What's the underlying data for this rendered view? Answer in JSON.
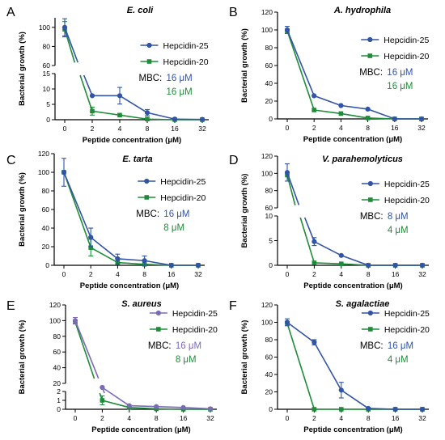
{
  "colors": {
    "blue": "#3154a5",
    "green": "#1f8c3a",
    "purple": "#7b6bb6",
    "black": "#000000"
  },
  "chart_data": [
    {
      "panel": "A",
      "title": "E. coli",
      "type": "line",
      "xlabel": "Peptide concentration (μM)",
      "ylabel": "Bacterial growth (%)",
      "categories": [
        "0",
        "2",
        "4",
        "8",
        "16",
        "32"
      ],
      "yaxis": {
        "lower": [
          0,
          15
        ],
        "upper": [
          60,
          110
        ],
        "lower_ticks": [
          "0",
          "5",
          "10",
          "15"
        ],
        "upper_ticks": [
          "60",
          "80",
          "100"
        ]
      },
      "series": [
        {
          "name": "Hepcidin-25",
          "color": "blue",
          "values": [
            100,
            7.8,
            7.8,
            2.3,
            0.2,
            0.1
          ],
          "errors": [
            9,
            0,
            2.7,
            1,
            0,
            0
          ]
        },
        {
          "name": "Hepcidin-20",
          "color": "green",
          "values": [
            98,
            2.8,
            1.5,
            0.2,
            0,
            0
          ],
          "errors": [
            8,
            1.3,
            0,
            0,
            0,
            0
          ]
        }
      ],
      "mbc": {
        "label": "MBC:",
        "hep25": "16 μM",
        "hep20": "16 μM"
      }
    },
    {
      "panel": "B",
      "title": "A. hydrophila",
      "type": "line",
      "xlabel": "Peptide concentration (μM)",
      "ylabel": "Bacterial growth (%)",
      "categories": [
        "0",
        "2",
        "4",
        "8",
        "16",
        "32"
      ],
      "yaxis": {
        "range": [
          0,
          120
        ],
        "ticks": [
          "0",
          "20",
          "40",
          "60",
          "80",
          "100",
          "120"
        ]
      },
      "series": [
        {
          "name": "Hepcidin-25",
          "color": "blue",
          "values": [
            100,
            26,
            15,
            11,
            0,
            0
          ],
          "errors": [
            4,
            0,
            0,
            0,
            0,
            0
          ]
        },
        {
          "name": "Hepcidin-20",
          "color": "green",
          "values": [
            99,
            10,
            6,
            1,
            0,
            0
          ],
          "errors": [
            0,
            0,
            0,
            0,
            0,
            0
          ]
        }
      ],
      "mbc": {
        "label": "MBC:",
        "hep25": "16 μM",
        "hep20": "16 μM"
      }
    },
    {
      "panel": "C",
      "title": "E. tarta",
      "type": "line",
      "xlabel": "Peptide concentration (μM)",
      "ylabel": "Bacterial growth (%)",
      "categories": [
        "0",
        "2",
        "4",
        "8",
        "16",
        "32"
      ],
      "yaxis": {
        "range": [
          0,
          120
        ],
        "ticks": [
          "0",
          "20",
          "40",
          "60",
          "80",
          "100",
          "120"
        ]
      },
      "series": [
        {
          "name": "Hepcidin-25",
          "color": "blue",
          "values": [
            100,
            30,
            7,
            5,
            0,
            0
          ],
          "errors": [
            15,
            10,
            5,
            5,
            0,
            0
          ]
        },
        {
          "name": "Hepcidin-20",
          "color": "green",
          "values": [
            100,
            19,
            3,
            1,
            0,
            0
          ],
          "errors": [
            0,
            9,
            0,
            0,
            0,
            0
          ]
        }
      ],
      "mbc": {
        "label": "MBC:",
        "hep25": "16 μM",
        "hep20": "8 μM"
      }
    },
    {
      "panel": "D",
      "title": "V. parahemolyticus",
      "type": "line",
      "xlabel": "Peptide concentration (μM)",
      "ylabel": "Bacterial growth (%)",
      "categories": [
        "0",
        "2",
        "4",
        "8",
        "16",
        "32"
      ],
      "yaxis": {
        "lower": [
          0,
          10
        ],
        "upper": [
          60,
          120
        ],
        "lower_ticks": [
          "0",
          "5",
          "10"
        ],
        "upper_ticks": [
          "60",
          "80",
          "100",
          "120"
        ]
      },
      "series": [
        {
          "name": "Hepcidin-25",
          "color": "blue",
          "values": [
            101,
            4.8,
            2,
            0,
            0,
            0
          ],
          "errors": [
            10,
            0.8,
            0,
            0,
            0,
            0
          ]
        },
        {
          "name": "Hepcidin-20",
          "color": "green",
          "values": [
            98,
            0.5,
            0.3,
            0,
            0,
            0
          ],
          "errors": [
            0,
            0,
            0,
            0,
            0,
            0
          ]
        }
      ],
      "mbc": {
        "label": "MBC:",
        "hep25": "8 μM",
        "hep20": "4 μM"
      }
    },
    {
      "panel": "E",
      "title": "S. aureus",
      "type": "line",
      "xlabel": "Peptide concentration (μM)",
      "ylabel": "Bacterial growth (%)",
      "categories": [
        "0",
        "2",
        "4",
        "8",
        "16",
        "32"
      ],
      "yaxis": {
        "lower": [
          0,
          2
        ],
        "upper": [
          20,
          120
        ],
        "lower_ticks": [
          "0",
          "1",
          "2"
        ],
        "upper_ticks": [
          "20",
          "40",
          "60",
          "80",
          "100",
          "120"
        ]
      },
      "series": [
        {
          "name": "Hepcidin-25",
          "color": "purple",
          "values": [
            100,
            10,
            0.4,
            0.3,
            0.2,
            0.05
          ],
          "errors": [
            4,
            0,
            0,
            0,
            0,
            0
          ]
        },
        {
          "name": "Hepcidin-20",
          "color": "green",
          "values": [
            98,
            1,
            0.2,
            0.05,
            0,
            0
          ],
          "errors": [
            0,
            0.5,
            0,
            0,
            0,
            0
          ]
        }
      ],
      "mbc": {
        "label": "MBC:",
        "hep25": "16 μM",
        "hep20": "8 μM"
      }
    },
    {
      "panel": "F",
      "title": "S. agalactiae",
      "type": "line",
      "xlabel": "Peptide concentration (μM)",
      "ylabel": "Bacterial growth (%)",
      "categories": [
        "0",
        "2",
        "4",
        "8",
        "16",
        "32"
      ],
      "yaxis": {
        "range": [
          0,
          120
        ],
        "ticks": [
          "0",
          "20",
          "40",
          "60",
          "80",
          "100",
          "120"
        ]
      },
      "series": [
        {
          "name": "Hepcidin-25",
          "color": "blue",
          "values": [
            100,
            77,
            22,
            1,
            0,
            0
          ],
          "errors": [
            4,
            3,
            9,
            0,
            0,
            0
          ]
        },
        {
          "name": "Hepcidin-20",
          "color": "green",
          "values": [
            99,
            0,
            0,
            0,
            0,
            0
          ],
          "errors": [
            0,
            0,
            0,
            0,
            0,
            0
          ]
        }
      ],
      "mbc": {
        "label": "MBC:",
        "hep25": "16 μM",
        "hep20": "4 μM"
      }
    }
  ]
}
